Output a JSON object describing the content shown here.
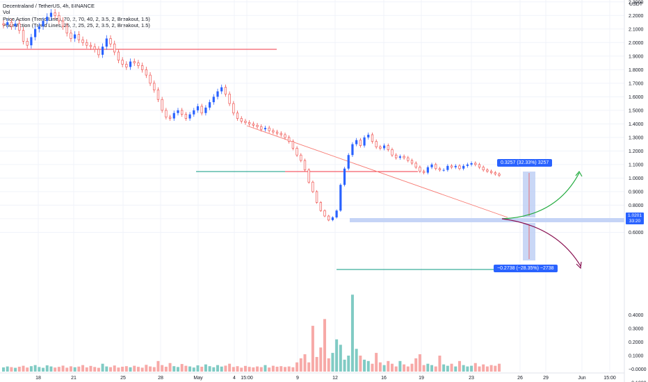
{
  "legend": {
    "symbol": "Decentraland / TetherUS, 4h, BINANCE",
    "vol": "Vol",
    "indicator1": "Price Action (Trend Lines, 70, 2, 70, 40, 2, 3.5, 2, Breakout, 1.5)",
    "indicator2": "Price Action (Trend Lines, 25, 2, 25, 25, 2, 3.5, 2, Breakout, 1.5)"
  },
  "price_axis": {
    "unit": "USDT",
    "ticks": [
      "2.5000",
      "2.4000",
      "2.3000",
      "2.2000",
      "2.1000",
      "2.0000",
      "1.9000",
      "1.8000",
      "1.7000",
      "1.6000",
      "1.5000",
      "1.4000",
      "1.3000",
      "1.2000",
      "1.1000",
      "1.0000",
      "0.9000",
      "0.8000",
      "0.7000",
      "0.6000"
    ]
  },
  "volume_axis": {
    "ticks": [
      "0.4000",
      "0.3000",
      "0.2000",
      "0.1000",
      "−0.0000",
      "−0.1000"
    ]
  },
  "time_axis": {
    "ticks": [
      "18",
      "21",
      "25",
      "28",
      "May",
      "4",
      "15:00",
      "9",
      "12",
      "16",
      "19",
      "23",
      "26",
      "29",
      "Jun",
      "15:00"
    ]
  },
  "last_price": {
    "value": "1.0201",
    "countdown": "33:20"
  },
  "measures": {
    "up": "0.3257 (32.33%) 3257",
    "down": "−0.2738 (−28.35%) −2738"
  },
  "colors": {
    "bull": "#26a69a",
    "bull_body": "#2962ff",
    "bear": "#ef5350",
    "volume_bull": "#80cbc4",
    "volume_bear": "#f7a9a7",
    "resistance": "#f23645",
    "support": "#089981",
    "measure_fill": "#bbcdf4",
    "tag": "#2962ff",
    "arrow_up": "#22ab3e",
    "arrow_down": "#880e4f"
  },
  "chart_data": {
    "type": "candlestick",
    "timeframe": "4h",
    "ylim": [
      0.6,
      2.5
    ],
    "series": [
      {
        "name": "Decentraland / TetherUS",
        "values": [
          2.13,
          2.15,
          2.12,
          2.14,
          2.09,
          2.01,
          1.98,
          2.04,
          2.1,
          2.12,
          2.16,
          2.19,
          2.22,
          2.2,
          2.16,
          2.12,
          2.07,
          2.03,
          2.06,
          2.02,
          2.0,
          1.98,
          1.97,
          1.95,
          1.91,
          1.97,
          2.03,
          1.99,
          1.93,
          1.87,
          1.84,
          1.82,
          1.86,
          1.85,
          1.83,
          1.8,
          1.76,
          1.7,
          1.65,
          1.58,
          1.5,
          1.45,
          1.44,
          1.48,
          1.5,
          1.47,
          1.44,
          1.47,
          1.5,
          1.53,
          1.48,
          1.52,
          1.56,
          1.6,
          1.64,
          1.67,
          1.62,
          1.55,
          1.48,
          1.44,
          1.42,
          1.41,
          1.4,
          1.39,
          1.38,
          1.36,
          1.37,
          1.35,
          1.34,
          1.33,
          1.32,
          1.3,
          1.27,
          1.22,
          1.17,
          1.13,
          1.06,
          0.97,
          0.9,
          0.82,
          0.76,
          0.72,
          0.69,
          0.71,
          0.76,
          0.95,
          1.07,
          1.17,
          1.25,
          1.28,
          1.24,
          1.3,
          1.32,
          1.27,
          1.23,
          1.22,
          1.24,
          1.21,
          1.17,
          1.15,
          1.16,
          1.15,
          1.13,
          1.11,
          1.08,
          1.05,
          1.04,
          1.08,
          1.1,
          1.07,
          1.06,
          1.06,
          1.09,
          1.08,
          1.09,
          1.07,
          1.09,
          1.1,
          1.11,
          1.1,
          1.08,
          1.06,
          1.05,
          1.04,
          1.03,
          1.02
        ]
      },
      {
        "name": "Vol",
        "values": [
          0.013,
          0.02,
          0.015,
          0.01,
          0.018,
          0.025,
          0.012,
          0.022,
          0.03,
          0.016,
          0.01,
          0.028,
          0.02,
          0.012,
          0.017,
          0.026,
          0.011,
          0.021,
          0.014,
          0.019,
          0.03,
          0.013,
          0.024,
          0.016,
          0.01,
          0.04,
          0.02,
          0.015,
          0.027,
          0.012,
          0.018,
          0.022,
          0.014,
          0.025,
          0.017,
          0.011,
          0.032,
          0.02,
          0.015,
          0.06,
          0.03,
          0.018,
          0.045,
          0.022,
          0.016,
          0.038,
          0.025,
          0.02,
          0.012,
          0.028,
          0.018,
          0.035,
          0.022,
          0.014,
          0.03,
          0.019,
          0.026,
          0.04,
          0.016,
          0.022,
          0.011,
          0.024,
          0.017,
          0.013,
          0.02,
          0.015,
          0.03,
          0.012,
          0.025,
          0.018,
          0.022,
          0.016,
          0.02,
          0.014,
          0.05,
          0.08,
          0.11,
          0.05,
          0.32,
          0.09,
          0.16,
          0.37,
          0.08,
          0.12,
          0.22,
          0.18,
          0.07,
          0.1,
          0.55,
          0.15,
          0.1,
          0.07,
          0.06,
          0.04,
          0.12,
          0.05,
          0.03,
          0.06,
          0.04,
          0.02,
          0.06,
          0.035,
          0.02,
          0.04,
          0.08,
          0.11,
          0.03,
          0.04,
          0.03,
          0.02,
          0.1,
          0.035,
          0.025,
          0.04,
          0.02,
          0.06,
          0.03,
          0.02,
          0.025,
          0.045,
          0.02,
          0.035,
          0.02,
          0.03,
          0.025,
          0.04
        ]
      }
    ]
  }
}
